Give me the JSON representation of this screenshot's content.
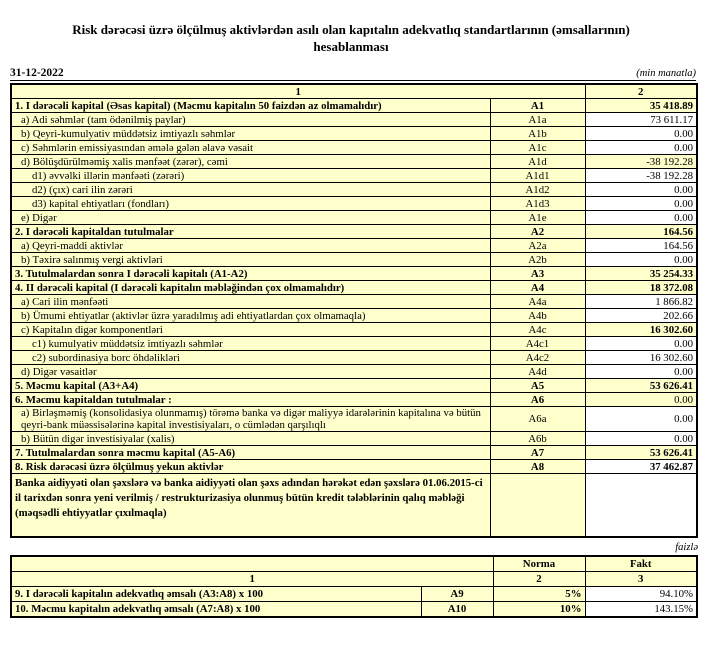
{
  "page": {
    "title_line1": "Risk dərəcəsi üzrə ölçülmuş aktivlərdən asılı olan kapıtalın adekvatlıq standartlarının (əmsallarının)",
    "title_line2": "hesablanması",
    "date": "31-12-2022",
    "unit_note": "(min manatla)",
    "percent_note": "faizlə"
  },
  "colors": {
    "cell_yellow": "#FFFFCC",
    "cell_white": "#FFFFFF",
    "border": "#000000"
  },
  "main_table": {
    "col_header_1": "1",
    "col_header_2": "2",
    "rows": [
      {
        "label": "1. I dərəcəli kapital (Əsas kapital) (Məcmu kapitalın 50 faizdən  az olmamalıdır)",
        "code": "A1",
        "value": "35 418.89",
        "total": true,
        "value_bold": true,
        "value_bg": "yellow",
        "indent": 0
      },
      {
        "label": "a) Adi səhmlər (tam ödənilmiş paylar)",
        "code": "A1a",
        "value": "73 611.17",
        "total": false,
        "value_bold": false,
        "value_bg": "white",
        "indent": 1
      },
      {
        "label": "b) Qeyri-kumulyativ müddətsiz imtiyazlı səhmlər",
        "code": "A1b",
        "value": "0.00",
        "total": false,
        "value_bold": false,
        "value_bg": "white",
        "indent": 1
      },
      {
        "label": "c) Səhmlərin emissiyasından əmələ gələn  əlavə vəsait",
        "code": "A1c",
        "value": "0.00",
        "total": false,
        "value_bold": false,
        "value_bg": "white",
        "indent": 1
      },
      {
        "label": "d)  Bölüşdürülməmiş xalis mənfəət (zərər), cəmi",
        "code": "A1d",
        "value": "-38 192.28",
        "total": false,
        "value_bold": false,
        "value_bg": "yellow",
        "indent": 1
      },
      {
        "label": "d1) əvvəlki illərin mənfəəti (zərəri)",
        "code": "A1d1",
        "value": "-38 192.28",
        "total": false,
        "value_bold": false,
        "value_bg": "white",
        "indent": 2
      },
      {
        "label": "d2) (çıx) cari ilin zərəri",
        "code": "A1d2",
        "value": "0.00",
        "total": false,
        "value_bold": false,
        "value_bg": "white",
        "indent": 2
      },
      {
        "label": "d3) kapital ehtiyatları (fondları)",
        "code": "A1d3",
        "value": "0.00",
        "total": false,
        "value_bold": false,
        "value_bg": "white",
        "indent": 2
      },
      {
        "label": "e) Digər",
        "code": "A1e",
        "value": "0.00",
        "total": false,
        "value_bold": false,
        "value_bg": "white",
        "indent": 1
      },
      {
        "label": "2. I dərəcəli kapitaldan  tutulmalar",
        "code": "A2",
        "value": "164.56",
        "total": true,
        "value_bold": true,
        "value_bg": "yellow",
        "indent": 0
      },
      {
        "label": "a) Qeyri-maddi aktivlər",
        "code": "A2a",
        "value": "164.56",
        "total": false,
        "value_bold": false,
        "value_bg": "white",
        "indent": 1
      },
      {
        "label": "b) Təxirə salınmış vergi aktivləri",
        "code": "A2b",
        "value": "0.00",
        "total": false,
        "value_bold": false,
        "value_bg": "white",
        "indent": 1
      },
      {
        "label": "3. Tutulmalardan  sonra I dərəcəli kapitalı (A1-A2)",
        "code": "A3",
        "value": "35 254.33",
        "total": true,
        "value_bold": true,
        "value_bg": "yellow",
        "indent": 0
      },
      {
        "label": "4. II dərəcəli  kapital (I dərəcəli  kapitalın  məbləğindən çox olmamalıdır)",
        "code": "A4",
        "value": "18 372.08",
        "total": true,
        "value_bold": true,
        "value_bg": "yellow",
        "indent": 0
      },
      {
        "label": "a) Cari ilin mənfəəti",
        "code": "A4a",
        "value": "1 866.82",
        "total": false,
        "value_bold": false,
        "value_bg": "white",
        "indent": 1
      },
      {
        "label": "b) Ümumi ehtiyatlar (aktivlər üzrə yaradılmış adi ehtiyatlardan çox olmamaqla)",
        "code": "A4b",
        "value": "202.66",
        "total": false,
        "value_bold": false,
        "value_bg": "white",
        "indent": 1
      },
      {
        "label": "c)  Kapitalın digər komponentləri",
        "code": "A4c",
        "value": "16 302.60",
        "total": false,
        "value_bold": true,
        "value_bg": "yellow",
        "indent": 1
      },
      {
        "label": "c1) kumulyativ müddətsiz imtiyazlı səhmlər",
        "code": "A4c1",
        "value": "0.00",
        "total": false,
        "value_bold": false,
        "value_bg": "white",
        "indent": 2
      },
      {
        "label": "c2) subordinasiya borc öhdəlikləri",
        "code": "A4c2",
        "value": "16 302.60",
        "total": false,
        "value_bold": false,
        "value_bg": "white",
        "indent": 2
      },
      {
        "label": "d) Digər vəsaitlər",
        "code": "A4d",
        "value": "0.00",
        "total": false,
        "value_bold": false,
        "value_bg": "white",
        "indent": 1
      },
      {
        "label": "5. Məcmu kapital (A3+A4)",
        "code": "A5",
        "value": "53 626.41",
        "total": true,
        "value_bold": true,
        "value_bg": "yellow",
        "indent": 0
      },
      {
        "label": "6. Məcmu kapitaldan tutulmalar :",
        "code": "A6",
        "value": "0.00",
        "total": true,
        "value_bold": false,
        "value_bg": "yellow",
        "indent": 0
      },
      {
        "label": "a)  Birləşməmiş (konsolidasiya olunmamış) törəmə banka və digər maliyyə idarələrinin kapitalına və bütün qeyri-bank müəssisələrinə kapital investisiyaları, o cümlədən qarşılıqlı",
        "code": "A6a",
        "value": "0.00",
        "total": false,
        "value_bold": false,
        "value_bg": "white",
        "indent": 1
      },
      {
        "label": "b) Bütün digər investisiyalar (xalis)",
        "code": "A6b",
        "value": "0.00",
        "total": false,
        "value_bold": false,
        "value_bg": "white",
        "indent": 1
      },
      {
        "label": "7. Tutulmalardan  sonra məcmu kapital (A5-A6)",
        "code": "A7",
        "value": "53 626.41",
        "total": true,
        "value_bold": true,
        "value_bg": "yellow",
        "indent": 0
      },
      {
        "label": "8. Risk dərəcəsi üzrə ölçülmuş yekun aktivlər",
        "code": "A8",
        "value": "37 462.87",
        "total": true,
        "value_bold": true,
        "value_bg": "white",
        "indent": 0
      }
    ],
    "note_row": {
      "label": "Banka aidiyyəti olan şəxslərə və banka aidiyyəti olan şəxs adından hərəkət edən şəxslərə 01.06.2015-ci il tarixdən sonra yeni verilmiş / restrukturizasiya olunmuş bütün kredit tələblərinin qalıq məbləği (məqsədli ehtiyyatlar çıxılmaqla)",
      "code": "",
      "value": ""
    }
  },
  "ratio_table": {
    "norma_header": "Norma",
    "fakt_header": "Fakt",
    "col1": "1",
    "col2": "2",
    "col3": "3",
    "rows": [
      {
        "label": "9. I dərəcəli  kapitalın  adekvatlıq əmsalı (A3:A8) x 100",
        "code": "A9",
        "norma": "5%",
        "fakt": "94.10%"
      },
      {
        "label": "10. Məcmu kapitalın  adekvatlıq  əmsalı (A7:A8) x 100",
        "code": "A10",
        "norma": "10%",
        "fakt": "143.15%"
      }
    ]
  }
}
